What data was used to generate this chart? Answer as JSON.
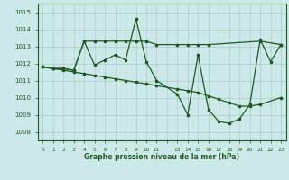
{
  "title": "Graphe pression niveau de la mer (hPa)",
  "bg_color": "#cce8e8",
  "grid_color": "#aacccc",
  "line_color": "#1a5c1a",
  "ylim": [
    1007.5,
    1015.5
  ],
  "yticks": [
    1008,
    1009,
    1010,
    1011,
    1012,
    1013,
    1014,
    1015
  ],
  "xtick_labels": [
    "0",
    "1",
    "2",
    "3",
    "4",
    "5",
    "6",
    "7",
    "8",
    "9",
    "10",
    "11",
    "",
    "13",
    "14",
    "15",
    "16",
    "17",
    "18",
    "19",
    "20",
    "21",
    "22",
    "23"
  ],
  "series1_x": [
    0,
    1,
    2,
    3,
    4,
    5,
    6,
    7,
    8,
    9,
    10,
    11,
    13,
    14,
    15,
    16,
    17,
    18,
    19,
    20,
    21,
    22,
    23
  ],
  "series1_y": [
    1011.8,
    1011.7,
    1011.7,
    1011.6,
    1013.3,
    1011.9,
    1012.2,
    1012.5,
    1012.2,
    1014.6,
    1012.1,
    1011.0,
    1010.2,
    1009.0,
    1012.5,
    1009.3,
    1008.6,
    1008.5,
    1008.75,
    1009.6,
    1013.4,
    1012.1,
    1013.1
  ],
  "series2_x": [
    0,
    1,
    2,
    3,
    4,
    5,
    6,
    7,
    8,
    9,
    10,
    11,
    13,
    14,
    15,
    16,
    21,
    23
  ],
  "series2_y": [
    1011.8,
    1011.7,
    1011.7,
    1011.6,
    1013.3,
    1013.3,
    1013.3,
    1013.3,
    1013.3,
    1013.3,
    1013.3,
    1013.1,
    1013.1,
    1013.1,
    1013.1,
    1013.1,
    1013.3,
    1013.1
  ],
  "series3_x": [
    0,
    1,
    2,
    3,
    4,
    5,
    6,
    7,
    8,
    9,
    10,
    11,
    13,
    14,
    15,
    16,
    17,
    18,
    19,
    20,
    21,
    23
  ],
  "series3_y": [
    1011.8,
    1011.7,
    1011.6,
    1011.5,
    1011.4,
    1011.3,
    1011.2,
    1011.1,
    1011.0,
    1010.9,
    1010.8,
    1010.7,
    1010.5,
    1010.4,
    1010.3,
    1010.1,
    1009.9,
    1009.7,
    1009.5,
    1009.5,
    1009.6,
    1010.0
  ]
}
